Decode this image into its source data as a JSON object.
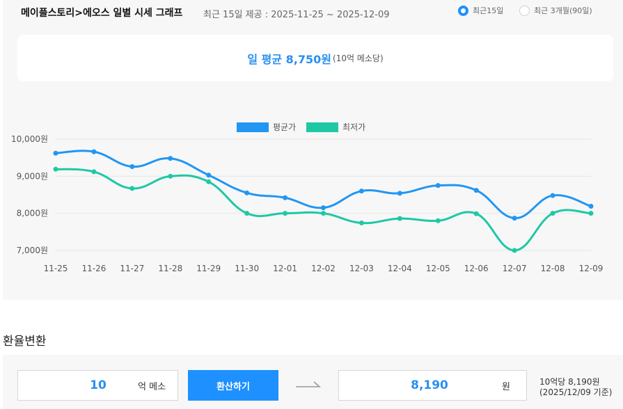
{
  "header": {
    "title": "메이플스토리>에오스 일별 시세 그래프",
    "subtitle": "최근 15일 제공 : 2025-11-25 ~ 2025-12-09"
  },
  "range_options": [
    {
      "label": "최근15일",
      "selected": true
    },
    {
      "label": "최근 3개월(90일)",
      "selected": false
    }
  ],
  "summary": {
    "main": "일 평균 8,750원",
    "unit": "(10억 메소당)"
  },
  "chart_data": {
    "type": "line",
    "title": "",
    "xlabel": "",
    "ylabel": "",
    "x": [
      "11-25",
      "11-26",
      "11-27",
      "11-28",
      "11-29",
      "11-30",
      "12-01",
      "12-02",
      "12-03",
      "12-04",
      "12-05",
      "12-06",
      "12-07",
      "12-08",
      "12-09"
    ],
    "series": [
      {
        "name": "평균가",
        "color": "#2196f3",
        "values": [
          9620,
          9660,
          9260,
          9480,
          9030,
          8550,
          8420,
          8150,
          8600,
          8540,
          8750,
          8620,
          7870,
          8480,
          8190
        ]
      },
      {
        "name": "최저가",
        "color": "#1ec8a5",
        "values": [
          9190,
          9120,
          8670,
          9000,
          8850,
          8000,
          8000,
          8000,
          7740,
          7860,
          7800,
          7990,
          7000,
          8000,
          8000
        ]
      }
    ],
    "ylim": [
      7000,
      10000
    ],
    "yticks": [
      7000,
      8000,
      9000,
      10000
    ],
    "ytick_labels": [
      "7,000원",
      "8,000원",
      "9,000원",
      "10,000원"
    ],
    "grid": true,
    "legend": "top-center"
  },
  "converter": {
    "section_title": "환율변환",
    "input_value": "10",
    "input_unit": "억 메소",
    "button_label": "환산하기",
    "output_value": "8,190",
    "output_unit": "원",
    "rate_line1": "10억당 8,190원",
    "rate_line2": "(2025/12/09 기준)"
  }
}
